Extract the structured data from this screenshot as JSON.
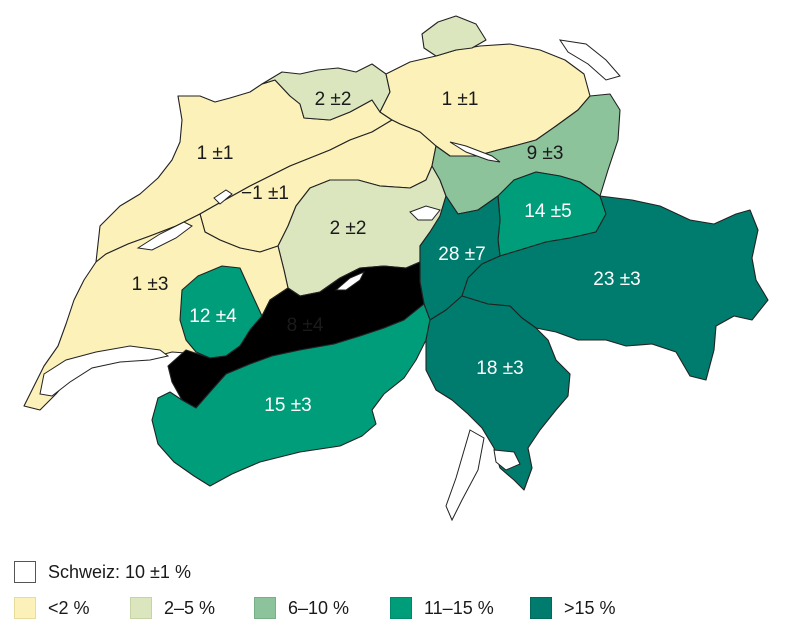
{
  "colors": {
    "lt2": "#fbf1b9",
    "c2to5": "#dbe6be",
    "c6to10": "#8cc39b",
    "c11to15": "#009d7a",
    "gt15": "#007c6e",
    "national": "#ffffff"
  },
  "regions": [
    {
      "id": "jura-north",
      "label": "1 ±1",
      "class": "lt2"
    },
    {
      "id": "basel",
      "label": "2 ±2",
      "class": "c2to5"
    },
    {
      "id": "zurich-north",
      "label": "1 ±1",
      "class": "lt2"
    },
    {
      "id": "mittelland",
      "label": "−1 ±1",
      "class": "lt2"
    },
    {
      "id": "central",
      "label": "2 ±2",
      "class": "c2to5"
    },
    {
      "id": "east",
      "label": "9 ±3",
      "class": "c6to10"
    },
    {
      "id": "glarus",
      "label": "14 ±5",
      "class": "c11to15"
    },
    {
      "id": "uri",
      "label": "28 ±7",
      "class": "gt15"
    },
    {
      "id": "graubuenden",
      "label": "23 ±3",
      "class": "gt15"
    },
    {
      "id": "lake-geneva",
      "label": "1 ±3",
      "class": "lt2"
    },
    {
      "id": "fribourg",
      "label": "12 ±4",
      "class": "c11to15"
    },
    {
      "id": "bernese-oberland",
      "label": "8 ±4",
      "class": "c6to10"
    },
    {
      "id": "valais",
      "label": "15 ±3",
      "class": "c11to15"
    },
    {
      "id": "ticino",
      "label": "18 ±3",
      "class": "gt15"
    }
  ],
  "legend": {
    "national": "Schweiz: 10 ±1 %",
    "items": [
      {
        "label": "<2 %",
        "class": "lt2"
      },
      {
        "label": "2–5 %",
        "class": "c2to5"
      },
      {
        "label": "6–10 %",
        "class": "c6to10"
      },
      {
        "label": "11–15 %",
        "class": "c11to15"
      },
      {
        "label": ">15 %",
        "class": "gt15"
      }
    ]
  }
}
